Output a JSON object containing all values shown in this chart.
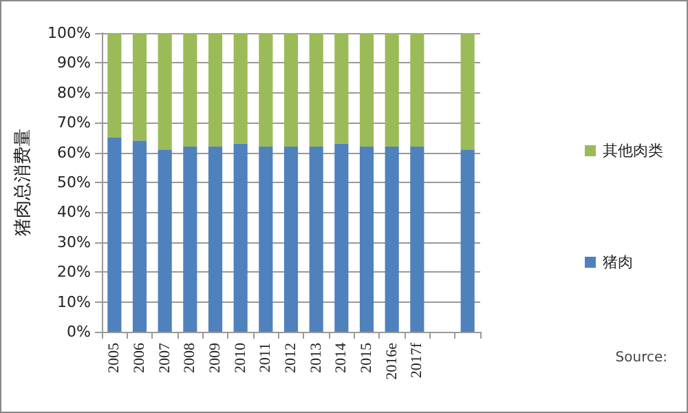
{
  "chart_data": {
    "type": "bar",
    "stacked": true,
    "ylabel": "猪肉总消费量",
    "categories": [
      "2005",
      "2006",
      "2007",
      "2008",
      "2009",
      "2010",
      "2011",
      "2012",
      "2013",
      "2014",
      "2015",
      "2016e",
      "2017f",
      null,
      null
    ],
    "series": [
      {
        "name": "猪肉",
        "color": "#4f81bd",
        "values": [
          65,
          64,
          61,
          62,
          62,
          63,
          62,
          62,
          62,
          63,
          62,
          62,
          62,
          null,
          61
        ]
      },
      {
        "name": "其他肉类",
        "color": "#9bbb59",
        "values": [
          35,
          36,
          39,
          38,
          38,
          37,
          38,
          38,
          38,
          37,
          38,
          38,
          38,
          null,
          39
        ]
      }
    ],
    "ylim": [
      0,
      100
    ],
    "yticks": [
      {
        "value": 0,
        "label": "0%"
      },
      {
        "value": 10,
        "label": "10%"
      },
      {
        "value": 20,
        "label": "20%"
      },
      {
        "value": 30,
        "label": "30%"
      },
      {
        "value": 40,
        "label": "40%"
      },
      {
        "value": 50,
        "label": "50%"
      },
      {
        "value": 60,
        "label": "60%"
      },
      {
        "value": 70,
        "label": "70%"
      },
      {
        "value": 80,
        "label": "80%"
      },
      {
        "value": 90,
        "label": "90%"
      },
      {
        "value": 100,
        "label": "100%"
      }
    ],
    "grid": "y",
    "legend": "right",
    "annotations": [
      "Source:"
    ]
  }
}
